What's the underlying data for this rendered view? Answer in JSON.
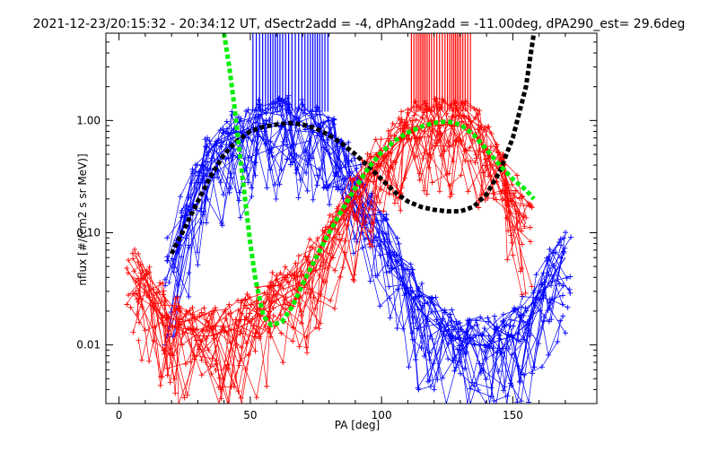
{
  "chart_data": {
    "type": "line",
    "title": "2021-12-23/20:15:32 - 20:34:12 UT, dSectr2add = -4, dPhAng2add = -11.00deg, dPA290_est=  29.6deg",
    "xlabel": "PA [deg]",
    "ylabel": "nflux [#/(cm2 s sr MeV)]",
    "xlim": [
      -5,
      182
    ],
    "ylim": [
      0.003,
      6
    ],
    "yscale": "log",
    "grid": false,
    "x_ticks": [
      {
        "value": 0,
        "label": "0"
      },
      {
        "value": 50,
        "label": "50"
      },
      {
        "value": 100,
        "label": "100"
      },
      {
        "value": 150,
        "label": "150"
      }
    ],
    "y_ticks": [
      {
        "value": 0.01,
        "label": "0.01"
      },
      {
        "value": 0.1,
        "label": "0.10"
      },
      {
        "value": 1.0,
        "label": "1.00"
      }
    ],
    "vertical_markers": [
      {
        "color": "#0000ff",
        "range": [
          51,
          80
        ],
        "ymin": 1.2,
        "ymax": 6
      },
      {
        "color": "#ff0000",
        "range": [
          111,
          134
        ],
        "ymin": 1.2,
        "ymax": 6
      }
    ],
    "series": [
      {
        "color": "#0000ff",
        "style": "thin-lines-plus",
        "x": [
          20,
          25,
          30,
          35,
          40,
          45,
          50,
          55,
          60,
          65,
          70,
          75,
          80,
          85,
          90,
          95,
          100,
          105,
          110,
          115,
          120,
          125,
          130,
          135,
          140,
          145,
          150,
          155,
          160,
          165,
          170
        ],
        "y": [
          0.05,
          0.12,
          0.24,
          0.4,
          0.55,
          0.68,
          0.78,
          0.85,
          0.9,
          0.93,
          0.9,
          0.78,
          0.6,
          0.42,
          0.26,
          0.15,
          0.085,
          0.05,
          0.03,
          0.02,
          0.015,
          0.012,
          0.011,
          0.01,
          0.01,
          0.011,
          0.012,
          0.015,
          0.025,
          0.04,
          0.06
        ]
      },
      {
        "color": "#ff0000",
        "style": "thin-lines-plus",
        "x": [
          5,
          10,
          15,
          20,
          25,
          30,
          35,
          40,
          45,
          50,
          55,
          60,
          65,
          70,
          75,
          80,
          85,
          90,
          95,
          100,
          105,
          110,
          115,
          120,
          125,
          130,
          135,
          140,
          145,
          150,
          155
        ],
        "y": [
          0.04,
          0.03,
          0.02,
          0.015,
          0.013,
          0.012,
          0.012,
          0.013,
          0.014,
          0.016,
          0.02,
          0.025,
          0.03,
          0.035,
          0.05,
          0.08,
          0.12,
          0.18,
          0.28,
          0.42,
          0.6,
          0.75,
          0.85,
          0.9,
          0.92,
          0.88,
          0.75,
          0.55,
          0.35,
          0.2,
          0.12
        ]
      },
      {
        "color": "#000000",
        "style": "thick-dashed",
        "x": [
          20,
          25,
          30,
          35,
          40,
          45,
          50,
          55,
          60,
          65,
          70,
          75,
          80,
          85,
          90,
          95,
          100,
          105,
          110,
          115,
          120,
          125,
          130,
          135,
          140,
          145,
          150,
          155,
          158
        ],
        "y": [
          0.065,
          0.11,
          0.19,
          0.32,
          0.5,
          0.66,
          0.8,
          0.88,
          0.92,
          0.95,
          0.92,
          0.85,
          0.74,
          0.62,
          0.5,
          0.39,
          0.3,
          0.23,
          0.19,
          0.17,
          0.16,
          0.155,
          0.155,
          0.17,
          0.22,
          0.35,
          0.7,
          2.0,
          6.0
        ]
      },
      {
        "color": "#00ee00",
        "style": "thick-dashed",
        "x": [
          40,
          42,
          44,
          46,
          48,
          50,
          52,
          55,
          58,
          62,
          66,
          70,
          75,
          80,
          85,
          90,
          95,
          100,
          105,
          110,
          115,
          120,
          125,
          130,
          135,
          140,
          145,
          150,
          155,
          158
        ],
        "y": [
          6.0,
          3.0,
          1.3,
          0.5,
          0.2,
          0.08,
          0.038,
          0.018,
          0.015,
          0.016,
          0.022,
          0.035,
          0.06,
          0.1,
          0.16,
          0.25,
          0.38,
          0.52,
          0.66,
          0.78,
          0.88,
          0.95,
          0.98,
          0.92,
          0.75,
          0.55,
          0.4,
          0.3,
          0.24,
          0.2
        ]
      }
    ]
  }
}
